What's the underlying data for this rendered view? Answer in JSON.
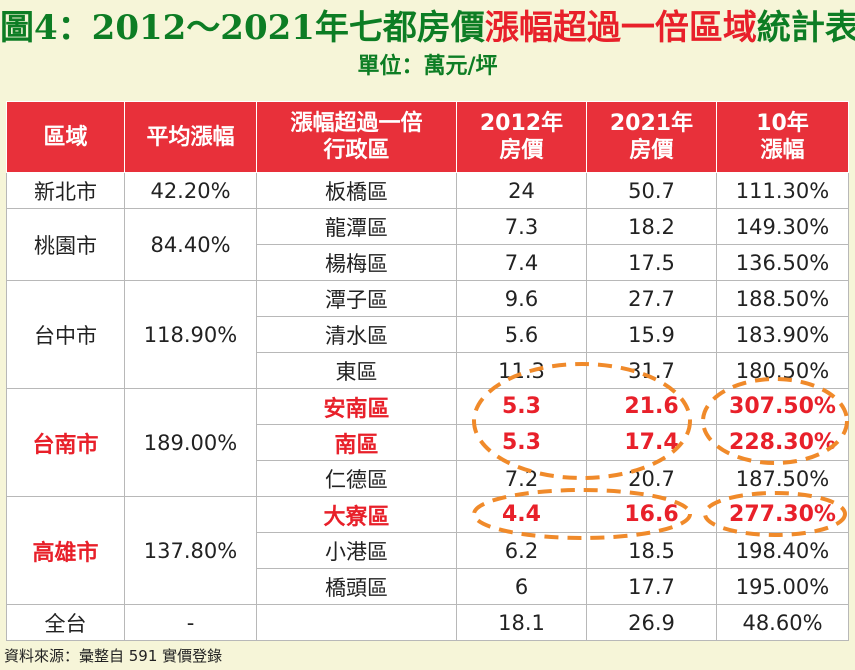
{
  "title": {
    "part1": "圖4：2012～2021年七都房價",
    "part2": "漲幅超過一倍區域",
    "part3": "統計表"
  },
  "unit": "單位：萬元/坪",
  "table": {
    "headers": [
      [
        "區域"
      ],
      [
        "平均漲幅"
      ],
      [
        "漲幅超過一倍",
        "行政區"
      ],
      [
        "2012年",
        "房價"
      ],
      [
        "2021年",
        "房價"
      ],
      [
        "10年",
        "漲幅"
      ]
    ],
    "cities": [
      {
        "name": "新北市",
        "avg": "42.20%",
        "highlight": false,
        "rows": [
          {
            "district": "板橋區",
            "p2012": "24",
            "p2021": "50.7",
            "rise": "111.30%",
            "highlight": false
          }
        ]
      },
      {
        "name": "桃園市",
        "avg": "84.40%",
        "highlight": false,
        "rows": [
          {
            "district": "龍潭區",
            "p2012": "7.3",
            "p2021": "18.2",
            "rise": "149.30%",
            "highlight": false
          },
          {
            "district": "楊梅區",
            "p2012": "7.4",
            "p2021": "17.5",
            "rise": "136.50%",
            "highlight": false
          }
        ]
      },
      {
        "name": "台中市",
        "avg": "118.90%",
        "highlight": false,
        "rows": [
          {
            "district": "潭子區",
            "p2012": "9.6",
            "p2021": "27.7",
            "rise": "188.50%",
            "highlight": false
          },
          {
            "district": "清水區",
            "p2012": "5.6",
            "p2021": "15.9",
            "rise": "183.90%",
            "highlight": false
          },
          {
            "district": "東區",
            "p2012": "11.3",
            "p2021": "31.7",
            "rise": "180.50%",
            "highlight": false
          }
        ]
      },
      {
        "name": "台南市",
        "avg": "189.00%",
        "highlight": true,
        "rows": [
          {
            "district": "安南區",
            "p2012": "5.3",
            "p2021": "21.6",
            "rise": "307.50%",
            "highlight": true
          },
          {
            "district": "南區",
            "p2012": "5.3",
            "p2021": "17.4",
            "rise": "228.30%",
            "highlight": true
          },
          {
            "district": "仁德區",
            "p2012": "7.2",
            "p2021": "20.7",
            "rise": "187.50%",
            "highlight": false
          }
        ]
      },
      {
        "name": "高雄市",
        "avg": "137.80%",
        "highlight": true,
        "rows": [
          {
            "district": "大寮區",
            "p2012": "4.4",
            "p2021": "16.6",
            "rise": "277.30%",
            "highlight": true
          },
          {
            "district": "小港區",
            "p2012": "6.2",
            "p2021": "18.5",
            "rise": "198.40%",
            "highlight": false
          },
          {
            "district": "橋頭區",
            "p2012": "6",
            "p2021": "17.7",
            "rise": "195.00%",
            "highlight": false
          }
        ]
      }
    ],
    "total": {
      "name": "全台",
      "avg": "-",
      "district": "",
      "p2012": "18.1",
      "p2021": "26.9",
      "rise": "48.60%"
    }
  },
  "source": "資料來源：彙整自 591 實價登錄",
  "colors": {
    "title_green": "#0d7d24",
    "accent_red": "#e8202a",
    "header_bg": "#e8303a",
    "oval": "#f08a2a",
    "background": "#f6f5d8"
  }
}
